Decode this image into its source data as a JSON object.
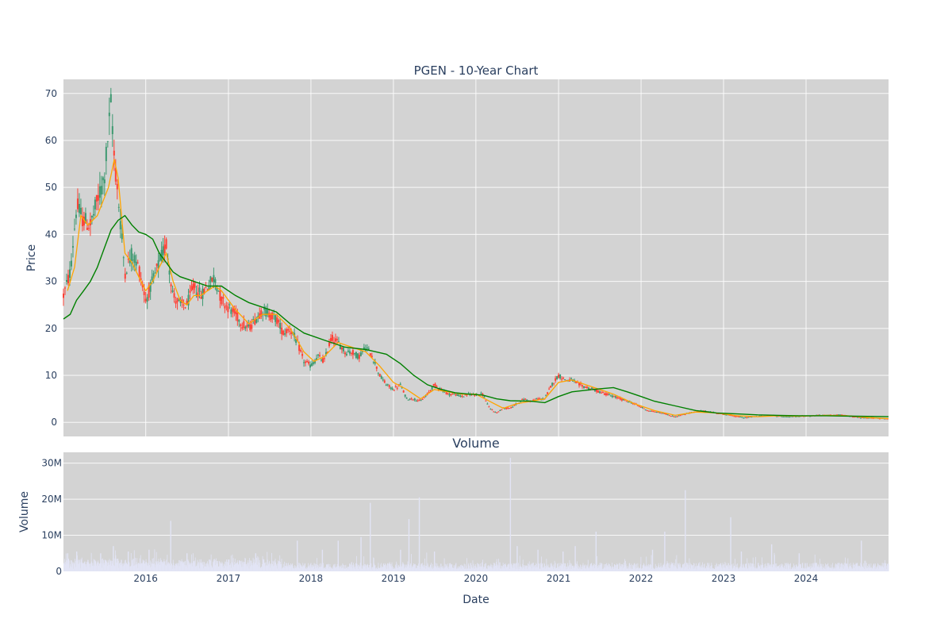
{
  "chart_data": [
    {
      "type": "candlestick",
      "title": "PGEN - 10-Year Chart",
      "ylabel": "Price",
      "ylim": [
        -3,
        73
      ],
      "y_ticks": [
        0,
        10,
        20,
        30,
        40,
        50,
        60,
        70
      ],
      "x_range": [
        "2015-01-02",
        "2024-12-31"
      ],
      "x_ticks": [
        "2016",
        "2017",
        "2018",
        "2019",
        "2020",
        "2021",
        "2022",
        "2023",
        "2024"
      ],
      "grid": true,
      "legend": "none",
      "colors": {
        "background": "#d3d3d3",
        "increasing": "#3d9970",
        "decreasing": "#ff4136",
        "ma_short": "#ffa500",
        "ma_long": "#008000"
      },
      "price_path": [
        [
          "2015-01-02",
          27
        ],
        [
          "2015-02-01",
          32
        ],
        [
          "2015-03-01",
          46
        ],
        [
          "2015-04-01",
          43
        ],
        [
          "2015-05-01",
          42
        ],
        [
          "2015-06-01",
          47
        ],
        [
          "2015-07-01",
          52
        ],
        [
          "2015-08-01",
          68
        ],
        [
          "2015-08-15",
          56
        ],
        [
          "2015-09-01",
          48
        ],
        [
          "2015-10-01",
          32
        ],
        [
          "2015-11-01",
          36
        ],
        [
          "2015-12-01",
          33
        ],
        [
          "2016-01-01",
          26
        ],
        [
          "2016-02-01",
          30
        ],
        [
          "2016-03-01",
          34
        ],
        [
          "2016-04-01",
          38
        ],
        [
          "2016-05-01",
          27
        ],
        [
          "2016-06-01",
          25
        ],
        [
          "2016-07-01",
          25
        ],
        [
          "2016-08-01",
          29
        ],
        [
          "2016-09-01",
          27
        ],
        [
          "2016-10-01",
          29
        ],
        [
          "2016-11-01",
          31
        ],
        [
          "2016-12-01",
          26
        ],
        [
          "2017-02-01",
          23
        ],
        [
          "2017-03-01",
          21
        ],
        [
          "2017-04-01",
          20
        ],
        [
          "2017-05-01",
          22
        ],
        [
          "2017-06-01",
          24
        ],
        [
          "2017-08-01",
          22
        ],
        [
          "2017-09-01",
          19
        ],
        [
          "2017-10-01",
          20
        ],
        [
          "2017-11-01",
          17
        ],
        [
          "2017-12-01",
          13
        ],
        [
          "2018-01-01",
          12
        ],
        [
          "2018-02-01",
          14
        ],
        [
          "2018-03-01",
          13
        ],
        [
          "2018-04-01",
          18
        ],
        [
          "2018-05-01",
          17
        ],
        [
          "2018-06-01",
          15
        ],
        [
          "2018-07-01",
          15
        ],
        [
          "2018-08-01",
          14
        ],
        [
          "2018-09-01",
          16
        ],
        [
          "2018-10-01",
          14
        ],
        [
          "2018-11-01",
          10
        ],
        [
          "2018-12-01",
          8
        ],
        [
          "2019-01-01",
          7
        ],
        [
          "2019-02-01",
          8
        ],
        [
          "2019-03-01",
          5
        ],
        [
          "2019-04-01",
          5
        ],
        [
          "2019-05-01",
          4.5
        ],
        [
          "2019-06-01",
          6
        ],
        [
          "2019-07-01",
          8
        ],
        [
          "2019-08-01",
          7
        ],
        [
          "2019-09-01",
          6
        ],
        [
          "2019-10-01",
          6
        ],
        [
          "2019-11-01",
          5.5
        ],
        [
          "2019-12-01",
          6
        ],
        [
          "2020-02-01",
          6
        ],
        [
          "2020-03-01",
          3
        ],
        [
          "2020-04-01",
          2
        ],
        [
          "2020-05-01",
          3
        ],
        [
          "2020-06-01",
          3
        ],
        [
          "2020-07-01",
          4
        ],
        [
          "2020-08-01",
          5
        ],
        [
          "2020-09-01",
          4.5
        ],
        [
          "2020-10-01",
          5
        ],
        [
          "2020-11-01",
          5
        ],
        [
          "2020-12-01",
          8
        ],
        [
          "2021-01-01",
          10
        ],
        [
          "2021-02-01",
          9
        ],
        [
          "2021-03-01",
          9
        ],
        [
          "2021-04-01",
          8
        ],
        [
          "2021-06-01",
          7
        ],
        [
          "2021-08-01",
          6
        ],
        [
          "2021-10-01",
          5
        ],
        [
          "2021-12-01",
          4
        ],
        [
          "2022-02-01",
          2.5
        ],
        [
          "2022-04-01",
          2
        ],
        [
          "2022-06-01",
          1.2
        ],
        [
          "2022-08-01",
          2
        ],
        [
          "2022-10-01",
          2.5
        ],
        [
          "2022-12-01",
          2
        ],
        [
          "2023-02-01",
          1.5
        ],
        [
          "2023-04-01",
          1
        ],
        [
          "2023-06-01",
          1.3
        ],
        [
          "2023-08-01",
          1.5
        ],
        [
          "2023-10-01",
          1.2
        ],
        [
          "2023-12-01",
          1.3
        ],
        [
          "2024-03-01",
          1.5
        ],
        [
          "2024-06-01",
          1.6
        ],
        [
          "2024-09-01",
          1
        ],
        [
          "2024-12-31",
          0.8
        ]
      ],
      "series": [
        {
          "role": "ma_short",
          "points": [
            [
              "2015-01-20",
              28
            ],
            [
              "2015-02-20",
              33
            ],
            [
              "2015-03-20",
              44
            ],
            [
              "2015-04-20",
              42
            ],
            [
              "2015-06-01",
              44
            ],
            [
              "2015-07-20",
              50
            ],
            [
              "2015-08-15",
              56
            ],
            [
              "2015-09-01",
              52
            ],
            [
              "2015-10-01",
              36
            ],
            [
              "2015-11-01",
              34
            ],
            [
              "2015-12-01",
              31
            ],
            [
              "2016-01-01",
              28
            ],
            [
              "2016-02-01",
              30
            ],
            [
              "2016-03-01",
              33
            ],
            [
              "2016-04-01",
              36
            ],
            [
              "2016-05-01",
              30
            ],
            [
              "2016-06-01",
              26
            ],
            [
              "2016-07-01",
              25
            ],
            [
              "2016-08-01",
              27
            ],
            [
              "2016-09-01",
              27
            ],
            [
              "2016-10-01",
              28
            ],
            [
              "2016-11-01",
              29
            ],
            [
              "2016-12-01",
              28
            ],
            [
              "2017-02-01",
              24
            ],
            [
              "2017-04-01",
              21
            ],
            [
              "2017-06-01",
              23
            ],
            [
              "2017-08-01",
              23
            ],
            [
              "2017-10-01",
              20
            ],
            [
              "2017-12-01",
              15
            ],
            [
              "2018-01-15",
              13
            ],
            [
              "2018-03-01",
              14
            ],
            [
              "2018-05-01",
              17
            ],
            [
              "2018-07-01",
              16
            ],
            [
              "2018-09-01",
              15
            ],
            [
              "2018-11-01",
              12
            ],
            [
              "2019-01-01",
              8.5
            ],
            [
              "2019-03-01",
              7
            ],
            [
              "2019-05-01",
              5
            ],
            [
              "2019-07-01",
              7
            ],
            [
              "2019-09-01",
              6.5
            ],
            [
              "2019-11-01",
              6
            ],
            [
              "2020-01-01",
              6
            ],
            [
              "2020-03-01",
              4.5
            ],
            [
              "2020-05-01",
              3
            ],
            [
              "2020-07-01",
              4
            ],
            [
              "2020-09-01",
              4.5
            ],
            [
              "2020-11-01",
              5
            ],
            [
              "2021-01-01",
              8.5
            ],
            [
              "2021-03-01",
              9
            ],
            [
              "2021-06-01",
              7.5
            ],
            [
              "2021-09-01",
              6
            ],
            [
              "2021-12-01",
              4
            ],
            [
              "2022-03-01",
              2.5
            ],
            [
              "2022-06-01",
              1.5
            ],
            [
              "2022-09-01",
              2.2
            ],
            [
              "2022-12-01",
              2
            ],
            [
              "2023-03-01",
              1.4
            ],
            [
              "2023-06-01",
              1.2
            ],
            [
              "2023-09-01",
              1.4
            ],
            [
              "2023-12-01",
              1.3
            ],
            [
              "2024-04-01",
              1.5
            ],
            [
              "2024-07-01",
              1.4
            ],
            [
              "2024-10-01",
              1
            ],
            [
              "2024-12-31",
              0.8
            ]
          ]
        },
        {
          "role": "ma_long",
          "points": [
            [
              "2015-01-02",
              22
            ],
            [
              "2015-02-01",
              23
            ],
            [
              "2015-03-01",
              26
            ],
            [
              "2015-04-01",
              28
            ],
            [
              "2015-05-01",
              30
            ],
            [
              "2015-06-01",
              33
            ],
            [
              "2015-07-01",
              37
            ],
            [
              "2015-08-01",
              41
            ],
            [
              "2015-09-01",
              43
            ],
            [
              "2015-10-01",
              44
            ],
            [
              "2015-11-01",
              42
            ],
            [
              "2015-12-01",
              40.5
            ],
            [
              "2016-01-01",
              40
            ],
            [
              "2016-02-01",
              39
            ],
            [
              "2016-03-01",
              36
            ],
            [
              "2016-04-01",
              34
            ],
            [
              "2016-05-01",
              32
            ],
            [
              "2016-06-01",
              31
            ],
            [
              "2016-08-01",
              30
            ],
            [
              "2016-10-01",
              29
            ],
            [
              "2016-12-01",
              29
            ],
            [
              "2017-02-01",
              27
            ],
            [
              "2017-04-01",
              25.5
            ],
            [
              "2017-06-01",
              24.5
            ],
            [
              "2017-08-01",
              23.5
            ],
            [
              "2017-10-01",
              21
            ],
            [
              "2017-12-01",
              19
            ],
            [
              "2018-03-01",
              17.5
            ],
            [
              "2018-06-01",
              16
            ],
            [
              "2018-09-01",
              15.5
            ],
            [
              "2018-12-01",
              14.5
            ],
            [
              "2019-02-01",
              12.5
            ],
            [
              "2019-04-01",
              10
            ],
            [
              "2019-06-01",
              8
            ],
            [
              "2019-08-01",
              7
            ],
            [
              "2019-10-01",
              6.3
            ],
            [
              "2019-12-01",
              6
            ],
            [
              "2020-02-01",
              5.8
            ],
            [
              "2020-04-01",
              5
            ],
            [
              "2020-06-01",
              4.6
            ],
            [
              "2020-09-01",
              4.5
            ],
            [
              "2020-11-01",
              4.2
            ],
            [
              "2021-01-01",
              5.5
            ],
            [
              "2021-03-01",
              6.5
            ],
            [
              "2021-06-01",
              7
            ],
            [
              "2021-09-01",
              7.4
            ],
            [
              "2021-11-01",
              6.5
            ],
            [
              "2022-01-01",
              5.5
            ],
            [
              "2022-03-01",
              4.5
            ],
            [
              "2022-06-01",
              3.5
            ],
            [
              "2022-09-01",
              2.5
            ],
            [
              "2022-12-01",
              2
            ],
            [
              "2023-03-01",
              1.8
            ],
            [
              "2023-06-01",
              1.6
            ],
            [
              "2023-09-01",
              1.5
            ],
            [
              "2023-12-01",
              1.4
            ],
            [
              "2024-04-01",
              1.4
            ],
            [
              "2024-08-01",
              1.3
            ],
            [
              "2024-12-31",
              1.2
            ]
          ]
        }
      ]
    },
    {
      "type": "bar",
      "title": "Volume",
      "xlabel": "Date",
      "ylabel": "Volume",
      "ylim": [
        0,
        33000000
      ],
      "y_ticks": [
        0,
        10000000,
        20000000,
        30000000
      ],
      "y_tick_labels": [
        "0",
        "10M",
        "20M",
        "30M"
      ],
      "x_ticks": [
        "2016",
        "2017",
        "2018",
        "2019",
        "2020",
        "2021",
        "2022",
        "2023",
        "2024"
      ],
      "grid": true,
      "colors": {
        "background": "#d3d3d3",
        "bar": "#e2e4f5"
      },
      "spikes": [
        [
          "2015-01-20",
          5000000
        ],
        [
          "2015-03-01",
          5500000
        ],
        [
          "2015-06-15",
          5000000
        ],
        [
          "2015-08-10",
          7000000
        ],
        [
          "2015-10-15",
          5500000
        ],
        [
          "2016-01-15",
          6000000
        ],
        [
          "2016-04-20",
          14000000
        ],
        [
          "2016-07-01",
          5000000
        ],
        [
          "2017-05-01",
          5000000
        ],
        [
          "2017-11-01",
          8500000
        ],
        [
          "2018-02-20",
          6000000
        ],
        [
          "2018-05-01",
          8500000
        ],
        [
          "2018-08-10",
          9500000
        ],
        [
          "2018-09-20",
          19000000
        ],
        [
          "2019-02-01",
          6000000
        ],
        [
          "2019-03-10",
          14500000
        ],
        [
          "2019-04-25",
          20500000
        ],
        [
          "2019-07-01",
          5500000
        ],
        [
          "2020-04-15",
          2500000
        ],
        [
          "2020-06-01",
          31500000
        ],
        [
          "2020-07-01",
          7000000
        ],
        [
          "2020-10-01",
          6000000
        ],
        [
          "2021-01-20",
          5500000
        ],
        [
          "2021-03-15",
          7000000
        ],
        [
          "2021-06-15",
          11000000
        ],
        [
          "2022-02-20",
          6000000
        ],
        [
          "2022-04-15",
          11000000
        ],
        [
          "2022-07-15",
          22500000
        ],
        [
          "2023-02-01",
          15000000
        ],
        [
          "2023-03-20",
          5500000
        ],
        [
          "2023-08-01",
          7500000
        ],
        [
          "2023-12-01",
          5000000
        ],
        [
          "2024-09-01",
          8500000
        ]
      ]
    }
  ]
}
